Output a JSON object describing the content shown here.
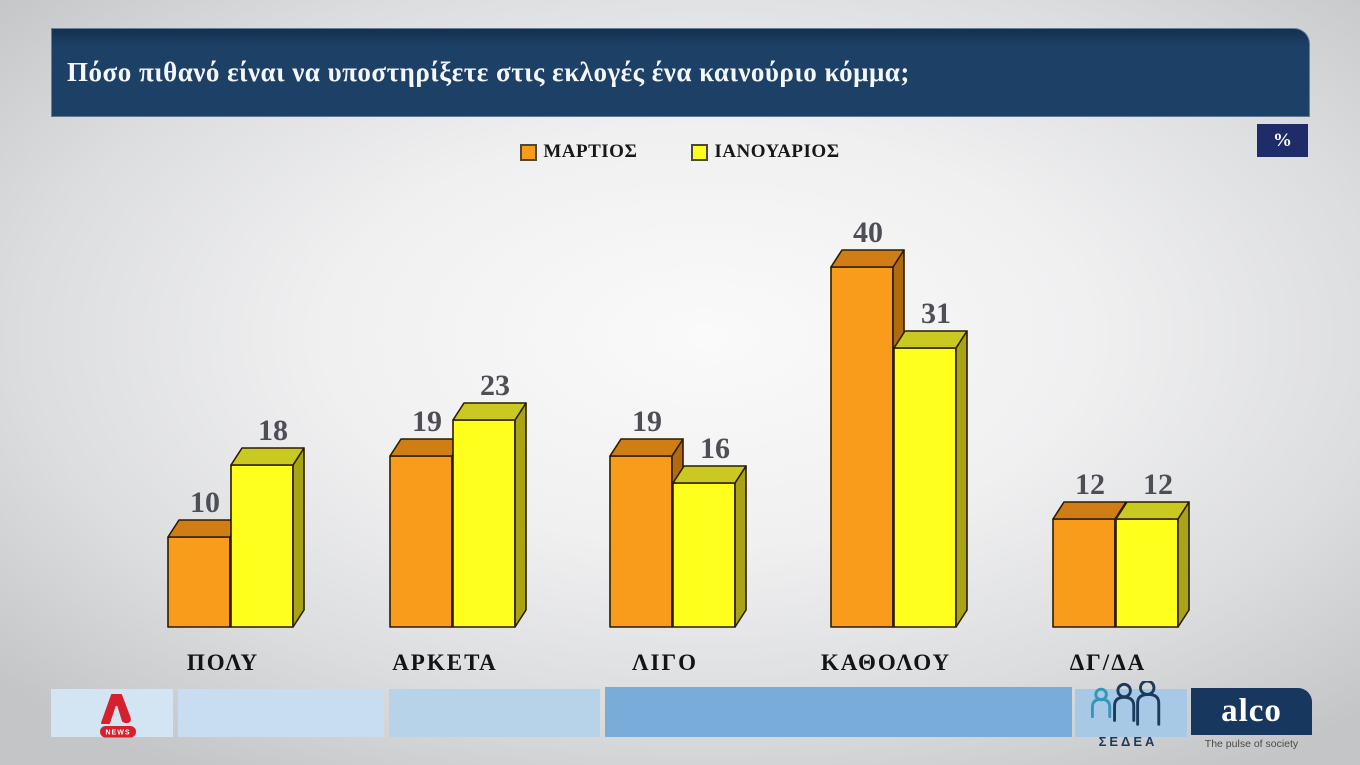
{
  "title": {
    "text": "Πόσο πιθανό είναι να υποστηρίξετε στις εκλογές ένα καινούριο κόμμα;"
  },
  "unit_badge": "%",
  "chart_data": {
    "type": "bar",
    "style": "3d-grouped-columns",
    "title": "Πόσο πιθανό είναι να υποστηρίξετε στις εκλογές ένα καινούριο κόμμα;",
    "categories": [
      "ΠΟΛΥ",
      "ΑΡΚΕΤΑ",
      "ΛΙΓΟ",
      "ΚΑΘΟΛΟΥ",
      "ΔΓ/ΔΑ"
    ],
    "series": [
      {
        "name": "ΜΑΡΤΙΟΣ",
        "values": [
          10,
          19,
          19,
          40,
          12
        ],
        "front_color": "#F99C1B",
        "top_color": "#D07D15",
        "side_color": "#B26A10"
      },
      {
        "name": "ΙΑΝΟΥΑΡΙΟΣ",
        "values": [
          18,
          23,
          16,
          31,
          12
        ],
        "front_color": "#FFFF1E",
        "top_color": "#C9C922",
        "side_color": "#A9A316"
      }
    ],
    "ylim": [
      0,
      45
    ],
    "unit": "%",
    "grid": false,
    "value_labels": true,
    "legend_position": "top-center",
    "value_label_color": "#4E4E56",
    "category_label_color": "#141414",
    "bar_outline_color": "#2A1C00"
  },
  "footer": {
    "alpha_news": {
      "badge_text": "NEWS"
    },
    "sedea": {
      "label": "ΣΕΔΕΑ"
    },
    "alco": {
      "brand": "alco",
      "tagline": "The pulse of society"
    }
  },
  "colors": {
    "title_bar": "#1D4066",
    "badge_bg": "#1E2C6A",
    "alco_bg": "#17375E",
    "alpha_red": "#D6202E",
    "sedea_navy": "#1B3A5C",
    "sedea_teal": "#3496B8",
    "footer_boxes": [
      "#D3E4F3",
      "#C8DDEF",
      "#B7D3EA",
      "#7AACDA",
      "#A8C9E6"
    ]
  }
}
